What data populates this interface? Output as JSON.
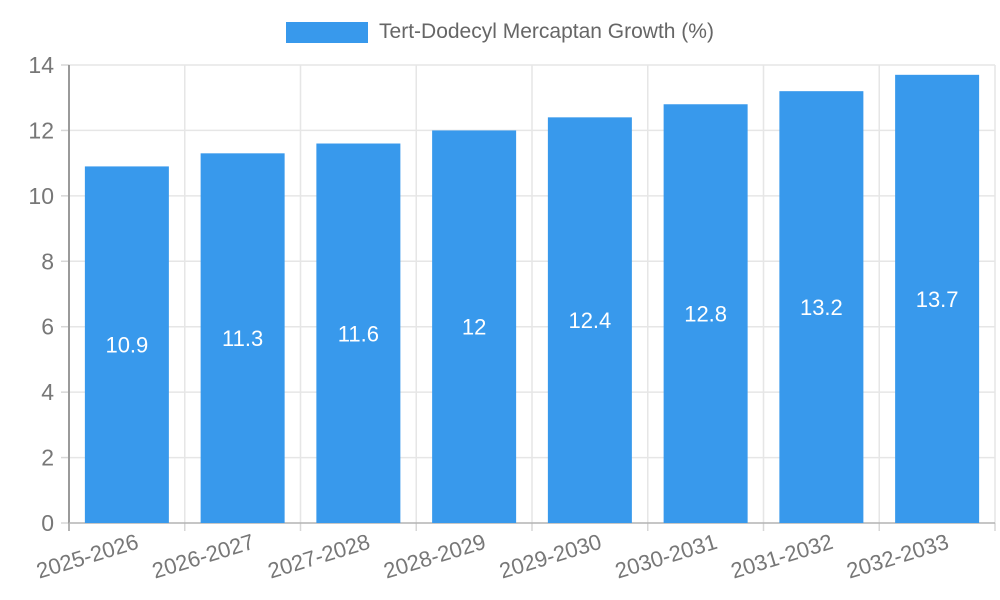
{
  "legend": {
    "label": "Tert-Dodecyl Mercaptan Growth (%)",
    "color": "#3899ec"
  },
  "chart_data": {
    "type": "bar",
    "title": "",
    "xlabel": "",
    "ylabel": "",
    "categories": [
      "2025-2026",
      "2026-2027",
      "2027-2028",
      "2028-2029",
      "2029-2030",
      "2030-2031",
      "2031-2032",
      "2032-2033"
    ],
    "series": [
      {
        "name": "Tert-Dodecyl Mercaptan Growth (%)",
        "values": [
          10.9,
          11.3,
          11.6,
          12,
          12.4,
          12.8,
          13.2,
          13.7
        ]
      }
    ],
    "value_labels": [
      "10.9",
      "11.3",
      "11.6",
      "12",
      "12.4",
      "12.8",
      "13.2",
      "13.7"
    ],
    "ylim": [
      0,
      14
    ],
    "yticks": [
      0,
      2,
      4,
      6,
      8,
      10,
      12,
      14
    ],
    "grid": true,
    "legend_position": "top",
    "bar_color": "#3899ec",
    "value_label_color": "#ffffff",
    "tick_label_color": "#777777",
    "grid_color": "#e6e6e6",
    "axis_line_color": "#9a9a9a",
    "x_label_rotation_deg": -17
  }
}
